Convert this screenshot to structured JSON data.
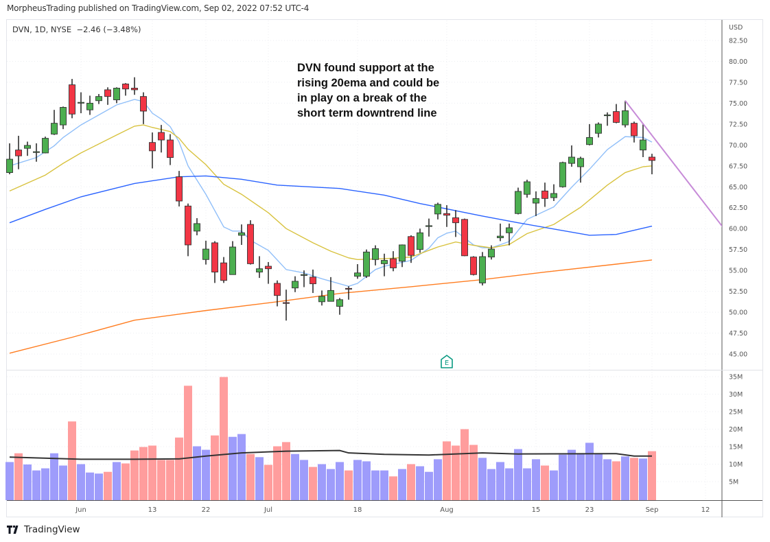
{
  "header": {
    "published": "MorpheusTrading published on TradingView.com, Sep 02, 2022 07:52 UTC-4"
  },
  "legend": {
    "symbol": "DVN, 1D, NYSE",
    "change": "−2.46 (−3.48%)"
  },
  "annotation": {
    "lines": [
      "DVN found support at the",
      "rising 20ema and could be",
      "in play on a break of the",
      "short term downtrend line"
    ]
  },
  "footer": {
    "brand": "TradingView"
  },
  "colors": {
    "up_candle": "#4caf50",
    "down_candle": "#f23645",
    "candle_border": "#333333",
    "up_volume": "#9e9cfb",
    "down_volume": "#ff9d9d",
    "earnings": "#089981",
    "trendline": "#c78bd8"
  },
  "chart_data": {
    "type": "candlestick",
    "currency": "USD",
    "price_axis": {
      "range": [
        45,
        82.5
      ],
      "ticks": [
        "82.50",
        "80.00",
        "77.50",
        "75.00",
        "72.50",
        "70.00",
        "67.50",
        "65.00",
        "62.50",
        "60.00",
        "57.50",
        "55.00",
        "52.50",
        "50.00",
        "47.50",
        "45.00"
      ]
    },
    "volume_axis": {
      "ticks": [
        "35M",
        "30M",
        "25M",
        "20M",
        "15M",
        "10M",
        "5M"
      ]
    },
    "x_ticks": [
      {
        "label": "Jun",
        "date": "2022-06-01"
      },
      {
        "label": "13",
        "date": "2022-06-13"
      },
      {
        "label": "22",
        "date": "2022-06-22"
      },
      {
        "label": "Jul",
        "date": "2022-07-01"
      },
      {
        "label": "18",
        "date": "2022-07-18"
      },
      {
        "label": "Aug",
        "date": "2022-08-01"
      },
      {
        "label": "15",
        "date": "2022-08-15"
      },
      {
        "label": "23",
        "date": "2022-08-23"
      },
      {
        "label": "Sep",
        "date": "2022-09-01"
      },
      {
        "label": "12",
        "date": "2022-09-12"
      }
    ],
    "grid": true,
    "columns": [
      "date",
      "open",
      "high",
      "low",
      "close",
      "volume_millions"
    ],
    "candles": [
      [
        "2022-05-19",
        66.7,
        70.2,
        66.5,
        68.3,
        10.6
      ],
      [
        "2022-05-20",
        69.4,
        71.1,
        67.1,
        68.7,
        13.1
      ],
      [
        "2022-05-23",
        69.6,
        70.4,
        68.7,
        69.95,
        9.9
      ],
      [
        "2022-05-24",
        69.15,
        70.2,
        68.0,
        69.2,
        8.2
      ],
      [
        "2022-05-25",
        69.05,
        71.0,
        69.0,
        70.8,
        8.8
      ],
      [
        "2022-05-26",
        71.3,
        74.2,
        71.2,
        72.6,
        13.1
      ],
      [
        "2022-05-27",
        72.4,
        74.6,
        71.9,
        74.5,
        9.6
      ],
      [
        "2022-05-31",
        77.2,
        77.9,
        73.2,
        73.7,
        22.2
      ],
      [
        "2022-06-01",
        75.05,
        76.3,
        73.8,
        75.1,
        10.0
      ],
      [
        "2022-06-02",
        74.2,
        75.9,
        73.6,
        75.0,
        7.6
      ],
      [
        "2022-06-03",
        75.3,
        76.1,
        74.9,
        75.8,
        7.3
      ],
      [
        "2022-06-06",
        76.6,
        76.9,
        74.8,
        75.8,
        7.8
      ],
      [
        "2022-06-07",
        75.4,
        76.9,
        75.0,
        76.8,
        10.6
      ],
      [
        "2022-06-08",
        77.3,
        77.4,
        75.9,
        76.7,
        10.2
      ],
      [
        "2022-06-09",
        76.8,
        78.1,
        76.0,
        76.6,
        13.9
      ],
      [
        "2022-06-10",
        75.8,
        76.3,
        72.5,
        74.05,
        14.9
      ],
      [
        "2022-06-13",
        70.3,
        71.5,
        67.2,
        69.3,
        15.3
      ],
      [
        "2022-06-14",
        71.5,
        72.4,
        69.1,
        70.6,
        11.2
      ],
      [
        "2022-06-15",
        70.6,
        71.3,
        67.6,
        68.5,
        11.2
      ],
      [
        "2022-06-16",
        66.2,
        66.9,
        62.65,
        63.3,
        17.6
      ],
      [
        "2022-06-17",
        62.7,
        63.0,
        56.7,
        58.05,
        32.4
      ],
      [
        "2022-06-21",
        59.7,
        61.25,
        59.2,
        60.6,
        15.1
      ],
      [
        "2022-06-22",
        56.3,
        58.55,
        55.7,
        57.55,
        14.1
      ],
      [
        "2022-06-23",
        58.3,
        58.5,
        53.5,
        54.8,
        18.2
      ],
      [
        "2022-06-24",
        55.9,
        56.6,
        53.5,
        53.8,
        34.9
      ],
      [
        "2022-06-27",
        54.5,
        58.5,
        54.5,
        57.8,
        17.8
      ],
      [
        "2022-06-28",
        59.2,
        60.5,
        58.05,
        59.5,
        18.6
      ],
      [
        "2022-06-29",
        60.5,
        61.0,
        55.7,
        55.8,
        12.9
      ],
      [
        "2022-06-30",
        54.8,
        56.7,
        54.1,
        55.2,
        12.0
      ],
      [
        "2022-07-01",
        55.5,
        56.0,
        53.4,
        55.2,
        9.8
      ],
      [
        "2022-07-05",
        53.45,
        53.8,
        50.7,
        52.0,
        15.1
      ],
      [
        "2022-07-06",
        51.15,
        52.7,
        49.0,
        51.1,
        16.3
      ],
      [
        "2022-07-07",
        52.9,
        54.3,
        52.4,
        53.7,
        12.9
      ],
      [
        "2022-07-08",
        54.45,
        55.0,
        53.0,
        54.5,
        11.2
      ],
      [
        "2022-07-11",
        54.2,
        55.1,
        52.3,
        53.4,
        9.2
      ],
      [
        "2022-07-12",
        51.25,
        52.6,
        50.8,
        51.9,
        10.0
      ],
      [
        "2022-07-13",
        51.3,
        54.2,
        51.3,
        52.6,
        8.6
      ],
      [
        "2022-07-14",
        50.7,
        51.7,
        49.7,
        51.5,
        10.6
      ],
      [
        "2022-07-15",
        52.85,
        53.1,
        51.5,
        52.8,
        8.2
      ],
      [
        "2022-07-18",
        54.3,
        55.75,
        54.0,
        54.7,
        11.2
      ],
      [
        "2022-07-19",
        54.3,
        57.5,
        54.1,
        57.2,
        10.8
      ],
      [
        "2022-07-20",
        56.3,
        58.0,
        55.6,
        57.6,
        8.2
      ],
      [
        "2022-07-21",
        55.8,
        57.0,
        54.3,
        56.2,
        8.2
      ],
      [
        "2022-07-22",
        56.4,
        57.3,
        54.9,
        55.3,
        6.5
      ],
      [
        "2022-07-25",
        56.1,
        58.1,
        55.4,
        58.05,
        8.6
      ],
      [
        "2022-07-26",
        59.05,
        59.2,
        55.9,
        56.8,
        10.0
      ],
      [
        "2022-07-27",
        57.5,
        60.0,
        57.1,
        59.5,
        9.4
      ],
      [
        "2022-07-28",
        60.3,
        61.2,
        59.05,
        60.35,
        7.8
      ],
      [
        "2022-07-29",
        61.75,
        63.1,
        61.1,
        62.9,
        11.4
      ],
      [
        "2022-08-01",
        61.8,
        62.8,
        60.2,
        61.6,
        16.5
      ],
      [
        "2022-08-02",
        61.3,
        62.2,
        59.0,
        60.7,
        15.3
      ],
      [
        "2022-08-03",
        61.1,
        61.2,
        56.7,
        56.75,
        20.0
      ],
      [
        "2022-08-04",
        56.6,
        56.7,
        54.4,
        54.5,
        15.5
      ],
      [
        "2022-08-05",
        53.5,
        57.2,
        53.2,
        56.65,
        11.8
      ],
      [
        "2022-08-08",
        56.6,
        58.0,
        56.3,
        57.55,
        8.6
      ],
      [
        "2022-08-09",
        58.9,
        60.6,
        58.5,
        59.1,
        10.6
      ],
      [
        "2022-08-10",
        59.5,
        60.6,
        58.0,
        60.1,
        8.8
      ],
      [
        "2022-08-11",
        61.8,
        64.9,
        61.7,
        64.45,
        14.3
      ],
      [
        "2022-08-12",
        64.1,
        65.85,
        63.7,
        65.6,
        8.8
      ],
      [
        "2022-08-15",
        63.05,
        64.45,
        61.5,
        63.6,
        11.4
      ],
      [
        "2022-08-16",
        64.5,
        65.5,
        62.6,
        63.6,
        9.6
      ],
      [
        "2022-08-17",
        63.7,
        65.3,
        63.3,
        64.2,
        8.2
      ],
      [
        "2022-08-18",
        65.0,
        68.0,
        64.9,
        67.9,
        12.7
      ],
      [
        "2022-08-19",
        67.8,
        69.95,
        67.4,
        68.55,
        14.1
      ],
      [
        "2022-08-22",
        67.4,
        68.6,
        65.5,
        68.4,
        12.9
      ],
      [
        "2022-08-23",
        70.05,
        72.5,
        69.95,
        70.9,
        16.1
      ],
      [
        "2022-08-24",
        71.4,
        72.7,
        70.9,
        72.5,
        13.1
      ],
      [
        "2022-08-25",
        73.5,
        73.9,
        72.3,
        73.6,
        11.4
      ],
      [
        "2022-08-26",
        74.0,
        74.9,
        72.6,
        72.7,
        10.8
      ],
      [
        "2022-08-29",
        72.4,
        75.3,
        72.1,
        74.1,
        12.2
      ],
      [
        "2022-08-30",
        72.6,
        72.8,
        70.3,
        71.1,
        11.8
      ],
      [
        "2022-08-31",
        69.4,
        72.5,
        68.55,
        70.6,
        11.6
      ],
      [
        "2022-09-01",
        68.55,
        68.95,
        66.5,
        68.15,
        13.7
      ]
    ],
    "price_lines": [
      {
        "color": "#90bff9",
        "points": [
          [
            "2022-05-19",
            67.5
          ],
          [
            "2022-05-24",
            68.5
          ],
          [
            "2022-05-26",
            69.9
          ],
          [
            "2022-05-27",
            70.9
          ],
          [
            "2022-06-01",
            72.4
          ],
          [
            "2022-06-07",
            74.8
          ],
          [
            "2022-06-09",
            75.45
          ],
          [
            "2022-06-10",
            75.2
          ],
          [
            "2022-06-13",
            73.8
          ],
          [
            "2022-06-14",
            73.1
          ],
          [
            "2022-06-15",
            72.2
          ],
          [
            "2022-06-16",
            70.35
          ],
          [
            "2022-06-17",
            67.5
          ],
          [
            "2022-06-22",
            64.1
          ],
          [
            "2022-06-24",
            60.2
          ],
          [
            "2022-06-27",
            59.7
          ],
          [
            "2022-06-28",
            59.7
          ],
          [
            "2022-06-29",
            58.6
          ],
          [
            "2022-07-01",
            57.4
          ],
          [
            "2022-07-06",
            55.1
          ],
          [
            "2022-07-08",
            54.7
          ],
          [
            "2022-07-12",
            54.0
          ],
          [
            "2022-07-15",
            53.1
          ],
          [
            "2022-07-18",
            53.45
          ],
          [
            "2022-07-20",
            55.1
          ],
          [
            "2022-07-21",
            55.5
          ],
          [
            "2022-07-26",
            56.2
          ],
          [
            "2022-07-28",
            57.65
          ],
          [
            "2022-07-29",
            58.9
          ],
          [
            "2022-08-01",
            59.45
          ],
          [
            "2022-08-02",
            59.7
          ],
          [
            "2022-08-04",
            58.05
          ],
          [
            "2022-08-05",
            57.7
          ],
          [
            "2022-08-08",
            57.7
          ],
          [
            "2022-08-10",
            58.45
          ],
          [
            "2022-08-12",
            61.1
          ],
          [
            "2022-08-17",
            62.6
          ],
          [
            "2022-08-19",
            64.95
          ],
          [
            "2022-08-23",
            67.1
          ],
          [
            "2022-08-25",
            69.45
          ],
          [
            "2022-08-29",
            71.0
          ],
          [
            "2022-08-31",
            70.9
          ],
          [
            "2022-09-01",
            70.35
          ]
        ]
      },
      {
        "color": "#d8c23e",
        "points": [
          [
            "2022-05-19",
            64.5
          ],
          [
            "2022-05-25",
            66.4
          ],
          [
            "2022-05-27",
            67.8
          ],
          [
            "2022-06-01",
            69.05
          ],
          [
            "2022-06-07",
            71.2
          ],
          [
            "2022-06-09",
            72.25
          ],
          [
            "2022-06-10",
            72.4
          ],
          [
            "2022-06-13",
            72.1
          ],
          [
            "2022-06-15",
            71.6
          ],
          [
            "2022-06-16",
            70.8
          ],
          [
            "2022-06-17",
            69.5
          ],
          [
            "2022-06-22",
            67.65
          ],
          [
            "2022-06-24",
            65.3
          ],
          [
            "2022-06-28",
            64.1
          ],
          [
            "2022-07-01",
            61.9
          ],
          [
            "2022-07-06",
            60.0
          ],
          [
            "2022-07-11",
            58.3
          ],
          [
            "2022-07-13",
            57.3
          ],
          [
            "2022-07-15",
            56.5
          ],
          [
            "2022-07-18",
            56.3
          ],
          [
            "2022-07-21",
            56.4
          ],
          [
            "2022-07-26",
            56.6
          ],
          [
            "2022-07-29",
            57.8
          ],
          [
            "2022-08-02",
            58.4
          ],
          [
            "2022-08-04",
            58.0
          ],
          [
            "2022-08-08",
            57.7
          ],
          [
            "2022-08-10",
            58.1
          ],
          [
            "2022-08-12",
            59.4
          ],
          [
            "2022-08-17",
            60.5
          ],
          [
            "2022-08-22",
            62.55
          ],
          [
            "2022-08-25",
            65.2
          ],
          [
            "2022-08-29",
            66.7
          ],
          [
            "2022-08-31",
            67.4
          ],
          [
            "2022-09-01",
            67.5
          ]
        ]
      },
      {
        "color": "#2962ff",
        "points": [
          [
            "2022-05-19",
            60.7
          ],
          [
            "2022-05-25",
            62.3
          ],
          [
            "2022-06-01",
            63.8
          ],
          [
            "2022-06-09",
            65.4
          ],
          [
            "2022-06-16",
            66.2
          ],
          [
            "2022-06-22",
            66.3
          ],
          [
            "2022-06-28",
            65.9
          ],
          [
            "2022-07-05",
            65.2
          ],
          [
            "2022-07-14",
            64.8
          ],
          [
            "2022-07-21",
            64.0
          ],
          [
            "2022-07-27",
            63.0
          ],
          [
            "2022-08-05",
            61.5
          ],
          [
            "2022-08-11",
            60.7
          ],
          [
            "2022-08-23",
            59.2
          ],
          [
            "2022-08-26",
            59.3
          ],
          [
            "2022-09-01",
            60.3
          ]
        ]
      },
      {
        "color": "#ff7c1f",
        "points": [
          [
            "2022-05-19",
            45.1
          ],
          [
            "2022-05-31",
            47.0
          ],
          [
            "2022-06-09",
            49.05
          ],
          [
            "2022-06-22",
            50.2
          ],
          [
            "2022-07-05",
            51.25
          ],
          [
            "2022-07-14",
            52.25
          ],
          [
            "2022-07-26",
            53.05
          ],
          [
            "2022-08-05",
            53.9
          ],
          [
            "2022-08-16",
            54.8
          ],
          [
            "2022-08-26",
            55.75
          ],
          [
            "2022-09-01",
            56.25
          ]
        ]
      }
    ],
    "volume_line": {
      "color": "#333333",
      "points": [
        [
          "2022-05-19",
          12.0
        ],
        [
          "2022-06-01",
          11.4
        ],
        [
          "2022-06-09",
          11.4
        ],
        [
          "2022-06-16",
          11.5
        ],
        [
          "2022-06-22",
          12.3
        ],
        [
          "2022-06-28",
          13.2
        ],
        [
          "2022-07-06",
          13.7
        ],
        [
          "2022-07-14",
          13.9
        ],
        [
          "2022-07-15",
          13.2
        ],
        [
          "2022-07-21",
          12.8
        ],
        [
          "2022-07-28",
          12.6
        ],
        [
          "2022-08-05",
          13.2
        ],
        [
          "2022-08-11",
          12.9
        ],
        [
          "2022-08-26",
          13.0
        ],
        [
          "2022-08-30",
          12.3
        ],
        [
          "2022-09-01",
          12.3
        ]
      ]
    },
    "trendline": {
      "from": [
        "2022-08-29",
        75.3
      ],
      "to": [
        "2022-09-14",
        60.1
      ]
    },
    "earnings_marker": {
      "date": "2022-08-01",
      "label": "E"
    }
  }
}
